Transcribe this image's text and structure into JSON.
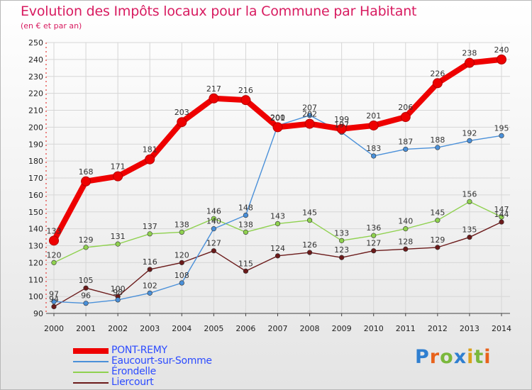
{
  "title": "Evolution des Impôts locaux pour la Commune par Habitant",
  "subtitle": "(en € et par an)",
  "logo": {
    "text": "Proxiti",
    "letters": [
      "P",
      "r",
      "o",
      "x",
      "i",
      "t",
      "i"
    ],
    "colors": [
      "#2f7fd0",
      "#e8621b",
      "#7ab83c",
      "#2f7fd0",
      "#d9a11b",
      "#7ab83c",
      "#e8621b"
    ]
  },
  "chart_data": {
    "type": "line",
    "title": "Evolution des Impôts locaux pour la Commune par Habitant",
    "ylabel": "(en € et par an)",
    "xlabel": "",
    "categories": [
      "2000",
      "2001",
      "2002",
      "2003",
      "2004",
      "2005",
      "2006",
      "2007",
      "2008",
      "2009",
      "2010",
      "2011",
      "2012",
      "2013",
      "2014"
    ],
    "ylim": [
      90,
      250
    ],
    "yticks": [
      90,
      100,
      110,
      120,
      130,
      140,
      150,
      160,
      170,
      180,
      190,
      200,
      210,
      220,
      230,
      240,
      250
    ],
    "grid": true,
    "legend_position": "bottom-left",
    "series": [
      {
        "name": "PONT-REMY",
        "color": "#ee0000",
        "values": [
          133,
          168,
          171,
          181,
          203,
          217,
          216,
          200,
          202,
          199,
          201,
          206,
          226,
          238,
          240
        ],
        "labels": [
          "133",
          "168",
          "171",
          "181",
          "203",
          "217",
          "216",
          "200",
          "202",
          "199",
          "201",
          "206",
          "226",
          "238",
          "240"
        ]
      },
      {
        "name": "Eaucourt-sur-Somme",
        "color": "#4a90d9",
        "values": [
          97,
          96,
          98,
          102,
          108,
          140,
          148,
          201,
          207,
          197,
          183,
          187,
          188,
          192,
          195
        ],
        "labels": [
          "97",
          "96",
          "98",
          "102",
          "108",
          "140",
          "148",
          "201",
          "207",
          "197",
          "183",
          "187",
          "188",
          "192",
          "195"
        ]
      },
      {
        "name": "Érondelle",
        "color": "#8fd14f",
        "values": [
          120,
          129,
          131,
          137,
          138,
          146,
          138,
          143,
          145,
          133,
          136,
          140,
          145,
          156,
          147
        ],
        "labels": [
          "120",
          "129",
          "131",
          "137",
          "138",
          "146",
          "138",
          "143",
          "145",
          "133",
          "136",
          "140",
          "145",
          "156",
          "147"
        ]
      },
      {
        "name": "Liercourt",
        "color": "#6b1a1a",
        "values": [
          94,
          105,
          100,
          116,
          120,
          127,
          115,
          124,
          126,
          123,
          127,
          128,
          129,
          135,
          144
        ],
        "labels": [
          "94",
          "105",
          "100",
          "116",
          "120",
          "127",
          "115",
          "124",
          "126",
          "123",
          "127",
          "128",
          "129",
          "135",
          "144"
        ]
      }
    ]
  }
}
